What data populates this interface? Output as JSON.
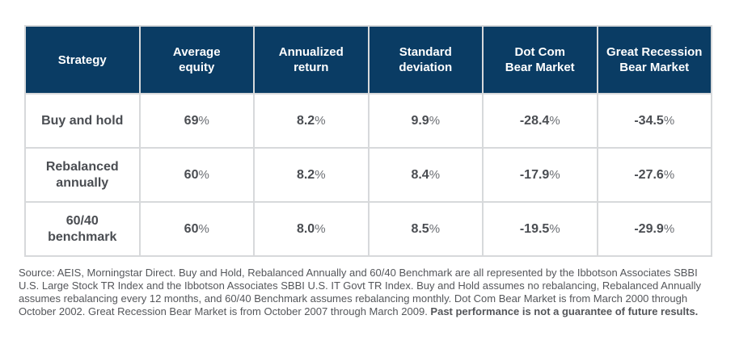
{
  "table": {
    "columns": [
      "Strategy",
      "Average\nequity",
      "Annualized\nreturn",
      "Standard\ndeviation",
      "Dot Com\nBear Market",
      "Great Recession\nBear Market"
    ],
    "rows": [
      {
        "strategy": "Buy and hold",
        "cells": [
          {
            "v": "69",
            "s": "%"
          },
          {
            "v": "8.2",
            "s": "%"
          },
          {
            "v": "9.9",
            "s": "%"
          },
          {
            "v": "-28.4",
            "s": "%"
          },
          {
            "v": "-34.5",
            "s": "%"
          }
        ]
      },
      {
        "strategy": "Rebalanced\nannually",
        "cells": [
          {
            "v": "60",
            "s": "%"
          },
          {
            "v": "8.2",
            "s": "%"
          },
          {
            "v": "8.4",
            "s": "%"
          },
          {
            "v": "-17.9",
            "s": "%"
          },
          {
            "v": "-27.6",
            "s": "%"
          }
        ]
      },
      {
        "strategy": "60/40\nbenchmark",
        "cells": [
          {
            "v": "60",
            "s": "%"
          },
          {
            "v": "8.0",
            "s": "%"
          },
          {
            "v": "8.5",
            "s": "%"
          },
          {
            "v": "-19.5",
            "s": "%"
          },
          {
            "v": "-29.9",
            "s": "%"
          }
        ]
      }
    ]
  },
  "footnote": {
    "text": "Source: AEIS, Morningstar Direct. Buy and Hold, Rebalanced Annually and 60/40 Benchmark are all represented by the Ibbotson Associates SBBI U.S. Large Stock TR Index and the Ibbotson Associates SBBI U.S. IT Govt TR Index. Buy and Hold assumes no rebalancing, Rebalanced Annually assumes rebalancing every 12 months, and 60/40 Benchmark assumes rebalancing monthly. Dot Com Bear Market is from March 2000 through October 2002. Great Recession Bear Market is from October 2007 through March 2009. ",
    "bold_text": "Past performance is not a guarantee of future results."
  },
  "colors": {
    "header_bg": "#0a3c64",
    "header_text": "#ffffff",
    "body_text": "#4a4d52",
    "suffix_text": "#6b6e73",
    "grid": "#d7d9db",
    "footnote_text": "#54565a",
    "page_bg": "#ffffff"
  }
}
